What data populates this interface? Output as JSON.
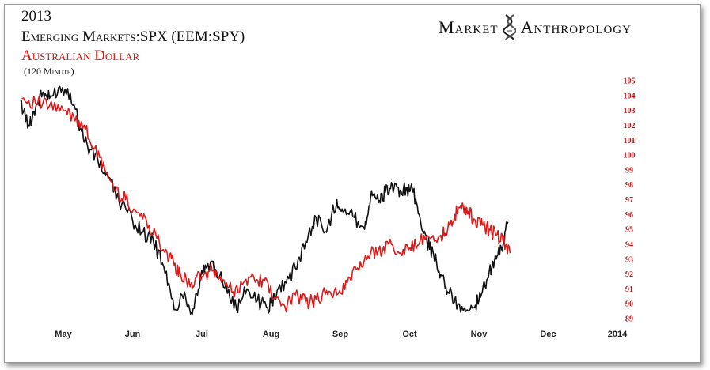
{
  "header": {
    "year": "2013",
    "title": "Emerging Markets:SPX (EEM:SPY)",
    "subtitle": "Australian Dollar",
    "note": "(120 Minute)"
  },
  "brand": {
    "left": "Market",
    "right": "Anthropology",
    "icon": "dna-helix-icon"
  },
  "chart_data": {
    "type": "line",
    "x_ticks": [
      "May",
      "Jun",
      "Jul",
      "Aug",
      "Sep",
      "Oct",
      "Nov",
      "Dec",
      "2014"
    ],
    "y_ticks": [
      105,
      104,
      103,
      102,
      101,
      100,
      99,
      98,
      97,
      96,
      95,
      94,
      93,
      92,
      91,
      90,
      89
    ],
    "ylim": [
      89,
      105
    ],
    "y_axis_side": "right",
    "grid": false,
    "x_unit": "month index (0 = May 1, 2013)",
    "series": [
      {
        "color": "#111111",
        "x": [
          -0.62,
          -0.5,
          -0.4,
          -0.3,
          -0.2,
          -0.05,
          0.1,
          0.25,
          0.35,
          0.5,
          0.65,
          0.8,
          1.0,
          1.15,
          1.3,
          1.45,
          1.6,
          1.75,
          1.85,
          1.95,
          2.05,
          2.2,
          2.35,
          2.5,
          2.65,
          2.8,
          2.95,
          3.05,
          3.2,
          3.35,
          3.5,
          3.65,
          3.8,
          3.95,
          4.05,
          4.2,
          4.35,
          4.45,
          4.55,
          4.65,
          4.75,
          4.85,
          4.95,
          5.05,
          5.15,
          5.25,
          5.35,
          5.45,
          5.55,
          5.7,
          5.85,
          5.95,
          6.05,
          6.15,
          6.25,
          6.35,
          6.42
        ],
        "y": [
          103.6,
          102.0,
          103.2,
          104.2,
          103.8,
          104.6,
          104.2,
          101.8,
          100.6,
          99.6,
          98.4,
          97.0,
          95.6,
          94.8,
          94.2,
          92.5,
          89.6,
          90.8,
          89.4,
          91.0,
          92.6,
          92.3,
          91.3,
          89.6,
          91.0,
          90.2,
          89.7,
          90.5,
          91.5,
          92.4,
          94.2,
          95.8,
          94.8,
          97.0,
          96.2,
          95.8,
          95.0,
          97.6,
          96.8,
          97.5,
          98.0,
          97.2,
          97.8,
          97.5,
          95.8,
          94.2,
          93.2,
          92.0,
          90.8,
          90.0,
          89.5,
          89.9,
          90.8,
          92.2,
          93.0,
          94.0,
          95.5
        ],
        "x_note": "values placed on month scale"
      },
      {
        "color": "#d81c1c",
        "x": [
          -0.6,
          -0.4,
          -0.2,
          0.0,
          0.15,
          0.3,
          0.45,
          0.6,
          0.75,
          0.9,
          1.05,
          1.2,
          1.35,
          1.5,
          1.6,
          1.7,
          1.85,
          2.0,
          2.15,
          2.3,
          2.45,
          2.6,
          2.75,
          2.9,
          3.05,
          3.2,
          3.35,
          3.5,
          3.65,
          3.8,
          3.95,
          4.1,
          4.25,
          4.4,
          4.55,
          4.7,
          4.85,
          5.0,
          5.15,
          5.3,
          5.45,
          5.55,
          5.65,
          5.75,
          5.85,
          5.95,
          6.05,
          6.15,
          6.25,
          6.35,
          6.45
        ],
        "y": [
          103.8,
          103.5,
          103.3,
          103.0,
          102.6,
          102.0,
          100.4,
          99.0,
          97.6,
          97.0,
          96.2,
          95.6,
          94.4,
          93.4,
          92.6,
          91.8,
          91.4,
          91.8,
          92.2,
          91.6,
          90.8,
          91.4,
          91.8,
          91.5,
          90.4,
          89.8,
          90.6,
          90.1,
          90.3,
          90.9,
          90.6,
          91.4,
          92.4,
          93.2,
          93.6,
          94.0,
          93.4,
          93.8,
          94.2,
          94.4,
          94.6,
          95.0,
          96.0,
          96.4,
          96.2,
          95.6,
          95.3,
          95.0,
          94.6,
          94.2,
          93.4
        ],
        "x_note": "values placed on month scale"
      }
    ]
  }
}
